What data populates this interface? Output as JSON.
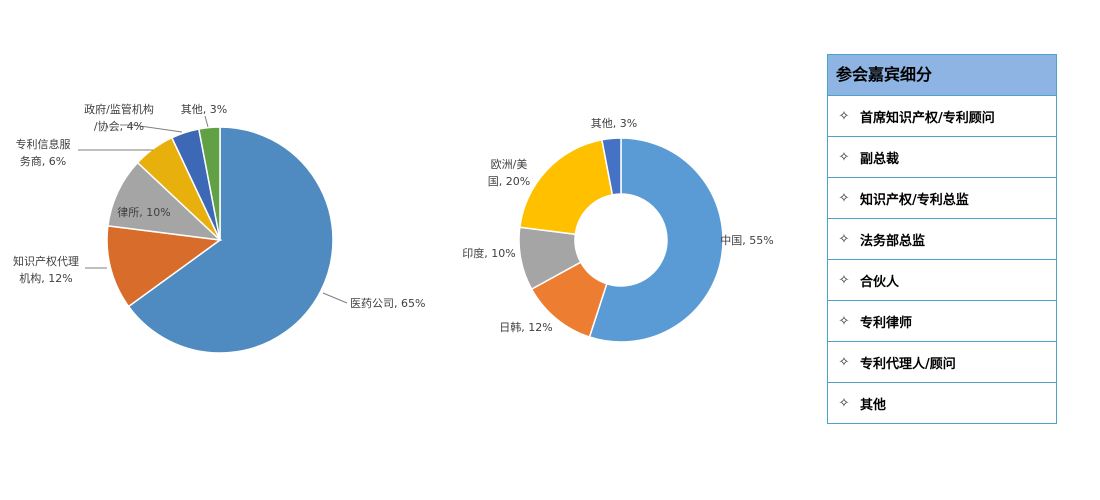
{
  "chart_data": [
    {
      "type": "pie",
      "slices": [
        {
          "label": [
            "医药公司, 65%"
          ],
          "value": 65,
          "color": "#4f8bc0"
        },
        {
          "label": [
            "知识产权代理",
            "机构, 12%"
          ],
          "value": 12,
          "color": "#d86d2b"
        },
        {
          "label": [
            "律所, 10%"
          ],
          "value": 10,
          "color": "#a5a5a5"
        },
        {
          "label": [
            "专利信息服",
            "务商, 6%"
          ],
          "value": 6,
          "color": "#e7b00d"
        },
        {
          "label": [
            "政府/监管机构",
            "/协会, 4%"
          ],
          "value": 4,
          "color": "#3d68b5"
        },
        {
          "label": [
            "其他, 3%"
          ],
          "value": 3,
          "color": "#62a046"
        }
      ]
    },
    {
      "type": "donut",
      "slices": [
        {
          "label": [
            "中国, 55%"
          ],
          "value": 55,
          "color": "#5b9bd5"
        },
        {
          "label": [
            "日韩, 12%"
          ],
          "value": 12,
          "color": "#ed7d31"
        },
        {
          "label": [
            "印度, 10%"
          ],
          "value": 10,
          "color": "#a5a5a5"
        },
        {
          "label": [
            "欧洲/美",
            "国, 20%"
          ],
          "value": 20,
          "color": "#ffc000"
        },
        {
          "label": [
            "其他, 3%"
          ],
          "value": 3,
          "color": "#4472c4"
        }
      ]
    }
  ],
  "panel": {
    "title": "参会嘉宾细分",
    "items": [
      "首席知识产权/专利顾问",
      "副总裁",
      "知识产权/专利总监",
      "法务部总监",
      "合伙人",
      "专利律师",
      "专利代理人/顾问",
      "其他"
    ]
  },
  "icons": {
    "bullet": "✧"
  }
}
